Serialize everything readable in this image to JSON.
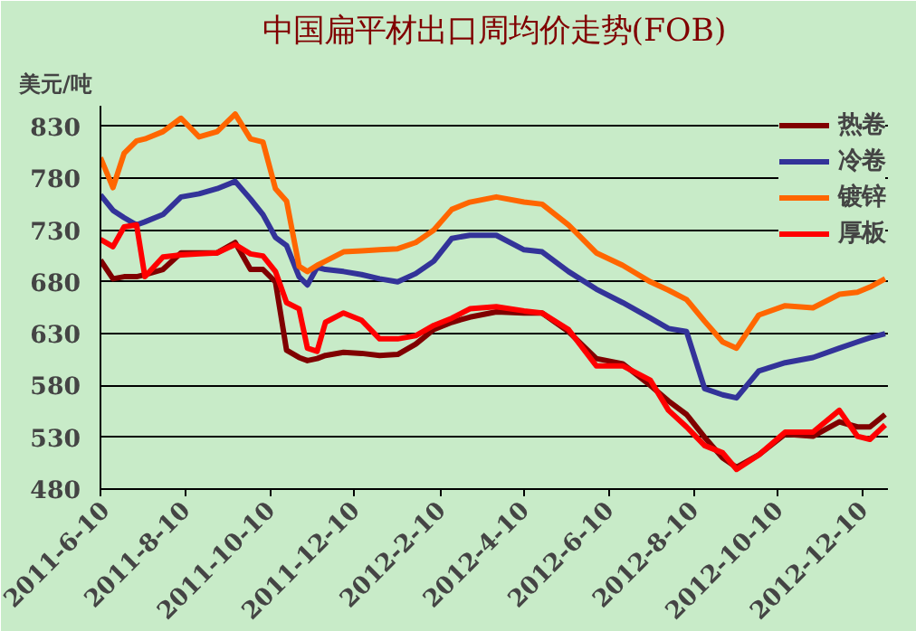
{
  "chart_data": {
    "type": "line",
    "title": "中国扁平材出口周均价走势(FOB)",
    "ylabel": "美元/吨",
    "x": [
      "2011-06-10",
      "2011-06-19",
      "2011-06-27",
      "2011-07-06",
      "2011-07-12",
      "2011-07-25",
      "2011-08-07",
      "2011-08-20",
      "2011-09-02",
      "2011-09-15",
      "2011-09-26",
      "2011-10-05",
      "2011-10-14",
      "2011-10-22",
      "2011-10-31",
      "2011-11-06",
      "2011-11-13",
      "2011-11-19",
      "2011-12-02",
      "2011-12-15",
      "2011-12-28",
      "2012-01-10",
      "2012-01-23",
      "2012-02-05",
      "2012-02-18",
      "2012-03-02",
      "2012-03-21",
      "2012-04-10",
      "2012-04-23",
      "2012-05-12",
      "2012-06-01",
      "2012-06-20",
      "2012-07-10",
      "2012-07-23",
      "2012-08-05",
      "2012-08-18",
      "2012-08-31",
      "2012-09-10",
      "2012-09-26",
      "2012-10-15",
      "2012-11-04",
      "2012-11-23",
      "2012-12-06",
      "2012-12-15",
      "2012-12-26"
    ],
    "series": [
      {
        "name": "热卷",
        "color": "#800000",
        "values": [
          701,
          683,
          685,
          685,
          687,
          692,
          708,
          708,
          708,
          718,
          692,
          692,
          680,
          614,
          607,
          604,
          606,
          609,
          612,
          611,
          609,
          610,
          620,
          634,
          641,
          646,
          651,
          650,
          650,
          632,
          606,
          601,
          580,
          565,
          552,
          530,
          510,
          501,
          513,
          533,
          531,
          545,
          540,
          540,
          552
        ]
      },
      {
        "name": "冷卷",
        "color": "#333399",
        "values": [
          764,
          749,
          742,
          735,
          738,
          745,
          762,
          765,
          770,
          777,
          760,
          745,
          723,
          715,
          685,
          677,
          694,
          692,
          690,
          687,
          683,
          680,
          688,
          700,
          722,
          725,
          725,
          711,
          709,
          690,
          673,
          660,
          645,
          635,
          632,
          577,
          571,
          568,
          594,
          602,
          607,
          616,
          622,
          626,
          630
        ]
      },
      {
        "name": "镀锌",
        "color": "#ff6600",
        "values": [
          800,
          771,
          804,
          816,
          818,
          825,
          838,
          820,
          825,
          842,
          818,
          815,
          770,
          758,
          695,
          690,
          696,
          700,
          709,
          710,
          711,
          712,
          718,
          730,
          750,
          757,
          762,
          757,
          755,
          735,
          708,
          696,
          680,
          672,
          663,
          642,
          622,
          616,
          648,
          657,
          655,
          668,
          670,
          675,
          683
        ]
      },
      {
        "name": "厚板",
        "color": "#ff0000",
        "values": [
          721,
          714,
          733,
          735,
          685,
          704,
          706,
          707,
          708,
          716,
          707,
          705,
          690,
          660,
          654,
          616,
          613,
          641,
          650,
          643,
          625,
          625,
          628,
          638,
          645,
          654,
          656,
          652,
          650,
          634,
          599,
          599,
          585,
          556,
          540,
          522,
          515,
          499,
          513,
          535,
          535,
          556,
          531,
          528,
          542
        ]
      }
    ],
    "xlim": [
      "2011-06-10",
      "2012-12-28"
    ],
    "xticks": [
      {
        "value": "2011-06-10",
        "label": "2011-6-10"
      },
      {
        "value": "2011-08-10",
        "label": "2011-8-10"
      },
      {
        "value": "2011-10-10",
        "label": "2011-10-10"
      },
      {
        "value": "2011-12-10",
        "label": "2011-12-10"
      },
      {
        "value": "2012-02-10",
        "label": "2012-2-10"
      },
      {
        "value": "2012-04-10",
        "label": "2012-4-10"
      },
      {
        "value": "2012-06-10",
        "label": "2012-6-10"
      },
      {
        "value": "2012-08-10",
        "label": "2012-8-10"
      },
      {
        "value": "2012-10-10",
        "label": "2012-10-10"
      },
      {
        "value": "2012-12-10",
        "label": "2012-12-10"
      }
    ],
    "ylim": [
      480,
      850
    ],
    "yticks": [
      480,
      530,
      580,
      630,
      680,
      730,
      780,
      830
    ],
    "grid": "y",
    "legend": "top right",
    "marker": "none",
    "line_style": "solid"
  }
}
